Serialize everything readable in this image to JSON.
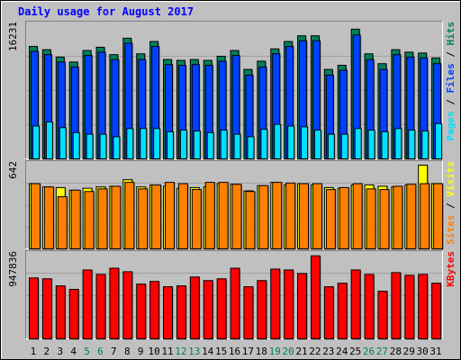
{
  "title": "Daily usage for August 2017",
  "colors": {
    "background": "#c0c0c0",
    "title": "#0000ff",
    "hits": "#00805c",
    "files": "#0040ff",
    "pages": "#00e0ff",
    "visits": "#ffff00",
    "sites": "#ff8000",
    "kbytes": "#ff0000",
    "weekend_label": "#00805c",
    "weekday_label": "#000000"
  },
  "chart_data": [
    {
      "type": "bar",
      "panel": "hits-files-pages",
      "y_max_label": "16231",
      "ylim": [
        0,
        16231
      ],
      "right_label_parts": [
        {
          "text": "Pages",
          "color": "#00e0ff"
        },
        {
          "text": " / ",
          "color": "#000000"
        },
        {
          "text": "Files",
          "color": "#0040ff"
        },
        {
          "text": " / ",
          "color": "#000000"
        },
        {
          "text": "Hits",
          "color": "#00805c"
        }
      ],
      "categories": [
        "1",
        "2",
        "3",
        "4",
        "5",
        "6",
        "7",
        "8",
        "9",
        "10",
        "11",
        "12",
        "13",
        "14",
        "15",
        "16",
        "17",
        "18",
        "19",
        "20",
        "21",
        "22",
        "23",
        "24",
        "25",
        "26",
        "27",
        "28",
        "29",
        "30",
        "31"
      ],
      "series": [
        {
          "name": "Hits",
          "values": [
            13700,
            13300,
            12400,
            11800,
            13200,
            13600,
            12700,
            14700,
            12800,
            14300,
            12100,
            12000,
            12100,
            12000,
            12500,
            13200,
            10900,
            11900,
            13400,
            14300,
            15000,
            15000,
            10900,
            11400,
            15800,
            12800,
            11600,
            13300,
            13000,
            12900,
            12300
          ]
        },
        {
          "name": "Files",
          "values": [
            13100,
            12700,
            11800,
            11200,
            12600,
            13000,
            12100,
            14100,
            12100,
            13700,
            11500,
            11400,
            11500,
            11400,
            11900,
            12600,
            10200,
            11200,
            12800,
            13700,
            14400,
            14400,
            10200,
            10800,
            15100,
            12100,
            10900,
            12700,
            12400,
            12300,
            11600
          ]
        },
        {
          "name": "Pages",
          "values": [
            4000,
            4500,
            3800,
            3200,
            3000,
            3000,
            2700,
            3700,
            3700,
            3700,
            3300,
            3500,
            3400,
            3200,
            3500,
            3000,
            2700,
            3600,
            4200,
            4000,
            3900,
            3500,
            3000,
            3000,
            3700,
            3500,
            3300,
            3700,
            3500,
            3400,
            4300
          ]
        }
      ]
    },
    {
      "type": "bar",
      "panel": "sites-visits",
      "y_max_label": "642",
      "ylim": [
        0,
        642
      ],
      "right_label_parts": [
        {
          "text": "Sites",
          "color": "#ff8000"
        },
        {
          "text": " / ",
          "color": "#000000"
        },
        {
          "text": "Visits",
          "color": "#ffff00"
        }
      ],
      "categories": [
        "1",
        "2",
        "3",
        "4",
        "5",
        "6",
        "7",
        "8",
        "9",
        "10",
        "11",
        "12",
        "13",
        "14",
        "15",
        "16",
        "17",
        "18",
        "19",
        "20",
        "21",
        "22",
        "23",
        "24",
        "25",
        "26",
        "27",
        "28",
        "29",
        "30",
        "31"
      ],
      "series": [
        {
          "name": "Visits",
          "values": [
            500,
            475,
            470,
            450,
            465,
            475,
            480,
            530,
            475,
            490,
            480,
            465,
            470,
            475,
            500,
            495,
            445,
            485,
            510,
            490,
            500,
            490,
            470,
            465,
            490,
            490,
            480,
            475,
            490,
            642,
            500
          ]
        },
        {
          "name": "Sites",
          "values": [
            500,
            475,
            400,
            450,
            440,
            460,
            480,
            510,
            460,
            490,
            510,
            500,
            455,
            510,
            510,
            495,
            440,
            485,
            510,
            505,
            500,
            500,
            455,
            470,
            500,
            460,
            455,
            480,
            495,
            500,
            500
          ]
        }
      ]
    },
    {
      "type": "bar",
      "panel": "kbytes",
      "y_max_label": "947836",
      "ylim": [
        0,
        947836
      ],
      "right_label_parts": [
        {
          "text": "KBytes",
          "color": "#ff0000"
        }
      ],
      "categories": [
        "1",
        "2",
        "3",
        "4",
        "5",
        "6",
        "7",
        "8",
        "9",
        "10",
        "11",
        "12",
        "13",
        "14",
        "15",
        "16",
        "17",
        "18",
        "19",
        "20",
        "21",
        "22",
        "23",
        "24",
        "25",
        "26",
        "27",
        "28",
        "29",
        "30",
        "31"
      ],
      "series": [
        {
          "name": "KBytes",
          "values": [
            690000,
            680000,
            600000,
            560000,
            780000,
            730000,
            800000,
            760000,
            620000,
            650000,
            590000,
            600000,
            700000,
            660000,
            680000,
            800000,
            590000,
            660000,
            790000,
            780000,
            740000,
            940000,
            590000,
            630000,
            780000,
            730000,
            540000,
            750000,
            720000,
            730000,
            630000
          ]
        }
      ]
    }
  ],
  "x_labels": [
    {
      "text": "1",
      "weekend": false
    },
    {
      "text": "2",
      "weekend": false
    },
    {
      "text": "3",
      "weekend": false
    },
    {
      "text": "4",
      "weekend": false
    },
    {
      "text": "5",
      "weekend": true
    },
    {
      "text": "6",
      "weekend": true
    },
    {
      "text": "7",
      "weekend": false
    },
    {
      "text": "8",
      "weekend": false
    },
    {
      "text": "9",
      "weekend": false
    },
    {
      "text": "10",
      "weekend": false
    },
    {
      "text": "11",
      "weekend": false
    },
    {
      "text": "12",
      "weekend": true
    },
    {
      "text": "13",
      "weekend": true
    },
    {
      "text": "14",
      "weekend": false
    },
    {
      "text": "15",
      "weekend": false
    },
    {
      "text": "16",
      "weekend": false
    },
    {
      "text": "17",
      "weekend": false
    },
    {
      "text": "18",
      "weekend": false
    },
    {
      "text": "19",
      "weekend": true
    },
    {
      "text": "20",
      "weekend": true
    },
    {
      "text": "21",
      "weekend": false
    },
    {
      "text": "22",
      "weekend": false
    },
    {
      "text": "23",
      "weekend": false
    },
    {
      "text": "24",
      "weekend": false
    },
    {
      "text": "25",
      "weekend": false
    },
    {
      "text": "26",
      "weekend": true
    },
    {
      "text": "27",
      "weekend": true
    },
    {
      "text": "28",
      "weekend": false
    },
    {
      "text": "29",
      "weekend": false
    },
    {
      "text": "30",
      "weekend": false
    },
    {
      "text": "31",
      "weekend": false
    }
  ]
}
